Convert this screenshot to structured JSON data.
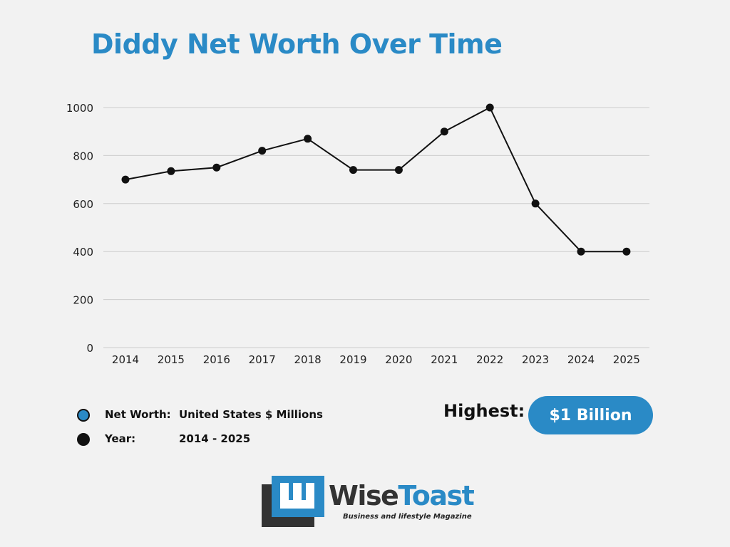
{
  "title": "Diddy Net Worth Over Time",
  "colors": {
    "accent": "#2a8ac6",
    "line": "#111111",
    "grid": "#cccccc",
    "background": "#f2f2f2"
  },
  "chart_data": {
    "type": "line",
    "title": "Diddy Net Worth Over Time",
    "xlabel": "",
    "ylabel": "",
    "categories": [
      "2014",
      "2015",
      "2016",
      "2017",
      "2018",
      "2019",
      "2020",
      "2021",
      "2022",
      "2023",
      "2024",
      "2025"
    ],
    "series": [
      {
        "values": [
          700,
          735,
          750,
          820,
          870,
          740,
          740,
          900,
          1000,
          600,
          400,
          400
        ]
      }
    ],
    "ylim": [
      0,
      1000
    ],
    "yticks": [
      0,
      200,
      400,
      600,
      800,
      1000
    ],
    "grid": true,
    "legend": "bottom-left"
  },
  "legend": [
    {
      "key": "Net Worth:",
      "value": "United States $ Millions",
      "marker": "blue-dot-icon"
    },
    {
      "key": "Year:",
      "value": "2014 - 2025",
      "marker": "black-dot-icon"
    }
  ],
  "highest": {
    "label": "Highest:",
    "value": "$1 Billion"
  },
  "logo": {
    "name_part1": "Wise",
    "name_part2": "Toast",
    "tagline": "Business and lifestyle Magazine"
  }
}
